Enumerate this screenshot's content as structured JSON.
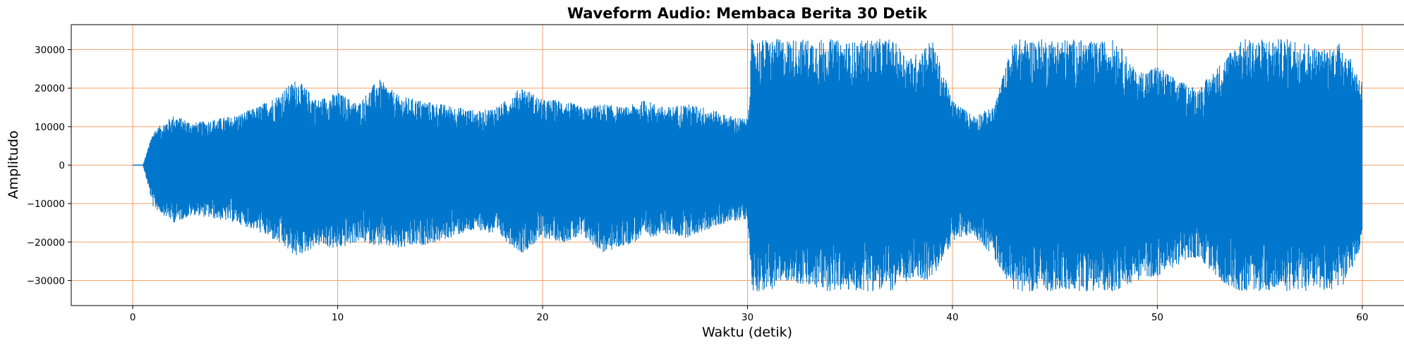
{
  "chart_data": {
    "type": "line",
    "title": "Waveform Audio: Membaca Berita 30 Detik",
    "xlabel": "Waktu (detik)",
    "ylabel": "Amplitudo",
    "xlim": [
      -3,
      63
    ],
    "ylim": [
      -36500,
      36500
    ],
    "x_ticks": [
      0,
      10,
      20,
      30,
      40,
      50,
      60
    ],
    "y_ticks": [
      -30000,
      -20000,
      -10000,
      0,
      10000,
      20000,
      30000
    ],
    "x_tick_labels": [
      "0",
      "10",
      "20",
      "30",
      "40",
      "50",
      "60"
    ],
    "y_tick_labels": [
      "−30000",
      "−20000",
      "−10000",
      "0",
      "10000",
      "20000",
      "30000"
    ],
    "grid": true,
    "grid_color": "#f4a06c",
    "line_color": "#0077cc",
    "series": [
      {
        "x": [
          0,
          0.5,
          1,
          2,
          3,
          4,
          5,
          6,
          7,
          8,
          9,
          10,
          11,
          12,
          13,
          14,
          15,
          16,
          17,
          18,
          19,
          20,
          21,
          22,
          23,
          24,
          25,
          26,
          27,
          28,
          29,
          30,
          30.2,
          31,
          32,
          33,
          34,
          35,
          36,
          37,
          38,
          39,
          40,
          41,
          42,
          43,
          44,
          45,
          46,
          47,
          48,
          49,
          50,
          51,
          52,
          53,
          54,
          55,
          56,
          57,
          58,
          59,
          60
        ],
        "upper": [
          0,
          0,
          9000,
          13000,
          11000,
          12000,
          13000,
          15000,
          18000,
          22500,
          17000,
          19000,
          16000,
          22500,
          18000,
          17000,
          16000,
          15000,
          14000,
          16000,
          20500,
          17000,
          17000,
          15000,
          16000,
          15000,
          17000,
          15000,
          16000,
          15000,
          13000,
          12000,
          32800,
          32800,
          32800,
          32800,
          32800,
          32000,
          32800,
          32800,
          28000,
          32800,
          17000,
          13000,
          15000,
          32800,
          32800,
          32800,
          32800,
          32000,
          32800,
          24000,
          26000,
          22000,
          20000,
          26000,
          32800,
          32800,
          32800,
          32800,
          30000,
          32000,
          22000
        ],
        "lower": [
          0,
          0,
          -11000,
          -15000,
          -13000,
          -14000,
          -15000,
          -17000,
          -20000,
          -24000,
          -21000,
          -22000,
          -20000,
          -21000,
          -22000,
          -21000,
          -20000,
          -18000,
          -17000,
          -19000,
          -23000,
          -19000,
          -20000,
          -19000,
          -23000,
          -21000,
          -19000,
          -18000,
          -19000,
          -17000,
          -15000,
          -14000,
          -32800,
          -32800,
          -30000,
          -32000,
          -32800,
          -32800,
          -32800,
          -32800,
          -30000,
          -30000,
          -20000,
          -18000,
          -24000,
          -32800,
          -32800,
          -32800,
          -32800,
          -32800,
          -32800,
          -30000,
          -29000,
          -26000,
          -24000,
          -30000,
          -32800,
          -32800,
          -32800,
          -32800,
          -32800,
          -32000,
          -22000
        ]
      }
    ]
  }
}
